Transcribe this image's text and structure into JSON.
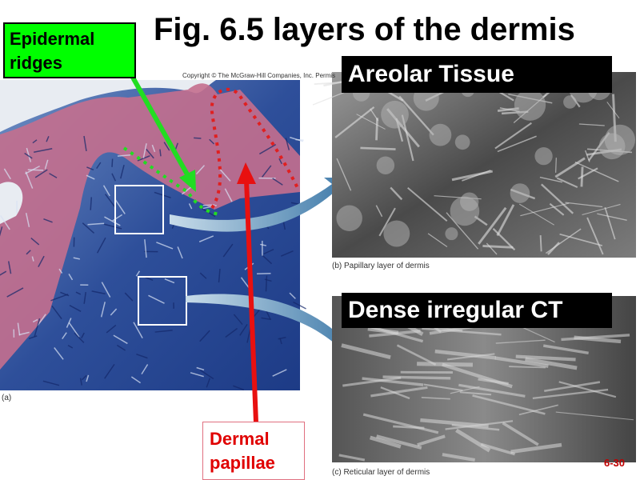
{
  "title": "Fig. 6.5 layers of the dermis",
  "copyright": "Copyright © The McGraw-Hill Companies, Inc. Permis",
  "labels": {
    "epidermal_ridges": "Epidermal ridges",
    "dermal_papillae": "Dermal papillae",
    "areolar_tissue": "Areolar Tissue",
    "dense_irregular": "Dense irregular CT"
  },
  "captions": {
    "a": "(a)",
    "b": "(b) Papillary layer of dermis",
    "c": "(c) Reticular layer of dermis"
  },
  "slide_number": "6-30"
}
